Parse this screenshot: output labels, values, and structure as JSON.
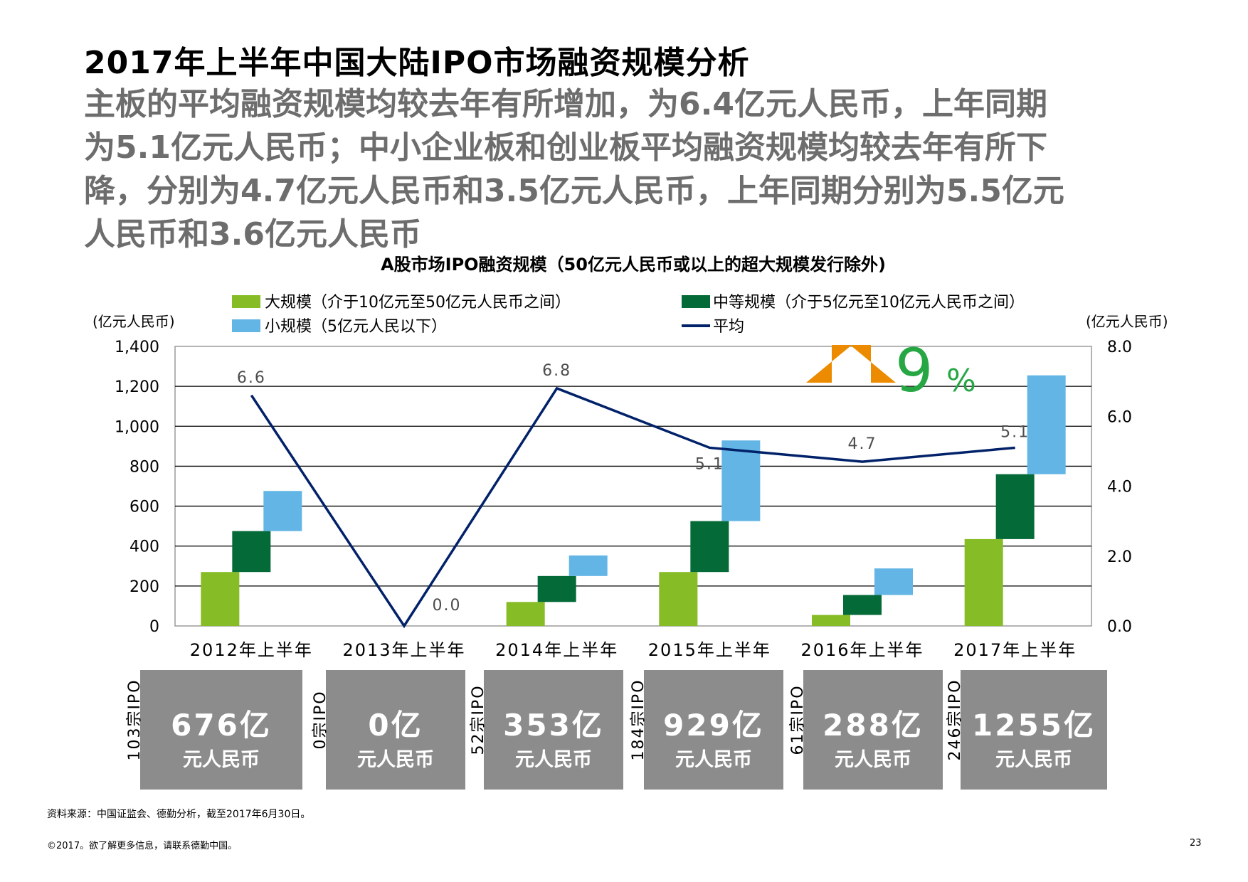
{
  "header": {
    "title": "2017年上半年中国大陆IPO市场融资规模分析",
    "subtitle_lines": [
      "主板的平均融资规模均较去年有所增加，为6.4亿元人民币，上年同期",
      "为5.1亿元人民币；中小企业板和创业板平均融资规模均较去年有所下",
      "降，分别为4.7亿元人民币和3.5亿元人民币，上年同期分别为5.5亿元",
      "人民币和3.6亿元人民币"
    ]
  },
  "chart_data": {
    "type": "bar",
    "title": "A股市场IPO融资规模（50亿元人民币或以上的超大规模发行除外)",
    "categories": [
      "2012年上半年",
      "2013年上半年",
      "2014年上半年",
      "2015年上半年",
      "2016年上半年",
      "2017年上半年"
    ],
    "y_left": {
      "label": "(亿元人民币)",
      "range": [
        0,
        1400
      ],
      "ticks": [
        "0",
        "200",
        "400",
        "600",
        "800",
        "1,000",
        "1,200",
        "1,400"
      ]
    },
    "y_right": {
      "label": "(亿元人民币)",
      "range": [
        0,
        8
      ],
      "ticks": [
        "0.0",
        "2.0",
        "4.0",
        "6.0",
        "8.0"
      ]
    },
    "grid": true,
    "legend_position": "top",
    "series": [
      {
        "name": "大规模（介于10亿元至50亿元人民币之间）",
        "kind": "waterfall-bar",
        "color": "#86bc25",
        "start": [
          0,
          0,
          0,
          0,
          0,
          0
        ],
        "end": [
          270,
          0,
          120,
          270,
          55,
          435
        ]
      },
      {
        "name": "中等规模（介于5亿元至10亿元人民币之间）",
        "kind": "waterfall-bar",
        "color": "#046a38",
        "start": [
          270,
          0,
          120,
          270,
          55,
          435
        ],
        "end": [
          475,
          0,
          250,
          525,
          155,
          760
        ]
      },
      {
        "name": "小规模（5亿元人民以下）",
        "kind": "waterfall-bar",
        "color": "#62b5e5",
        "start": [
          475,
          0,
          250,
          525,
          155,
          760
        ],
        "end": [
          676,
          0,
          353,
          929,
          288,
          1255
        ]
      },
      {
        "name": "平均",
        "kind": "line",
        "axis": "right",
        "color": "#012169",
        "values": [
          6.6,
          0.0,
          6.8,
          5.1,
          4.7,
          5.1
        ],
        "labels": [
          "6.6",
          "0.0",
          "6.8",
          "5.1",
          "4.7",
          "5.1"
        ]
      }
    ],
    "annotation": {
      "text": "9",
      "suffix": "%",
      "arrow": "up",
      "arrow_color": "#ed8b00",
      "text_color": "#26a744"
    }
  },
  "summary_cards": [
    {
      "amount": "676亿",
      "unit": "元人民币",
      "count": "103宗IPO"
    },
    {
      "amount": "0亿",
      "unit": "元人民币",
      "count": "0宗IPO"
    },
    {
      "amount": "353亿",
      "unit": "元人民币",
      "count": "52宗IPO"
    },
    {
      "amount": "929亿",
      "unit": "元人民币",
      "count": "184宗IPO"
    },
    {
      "amount": "288亿",
      "unit": "元人民币",
      "count": "61宗IPO"
    },
    {
      "amount": "1255亿",
      "unit": "元人民币",
      "count": "246宗IPO"
    }
  ],
  "footer": {
    "source": "资料来源：中国证监会、德勤分析，截至2017年6月30日。",
    "copyright": "©2017。欲了解更多信息，请联系德勤中国。",
    "page_number": "23"
  }
}
